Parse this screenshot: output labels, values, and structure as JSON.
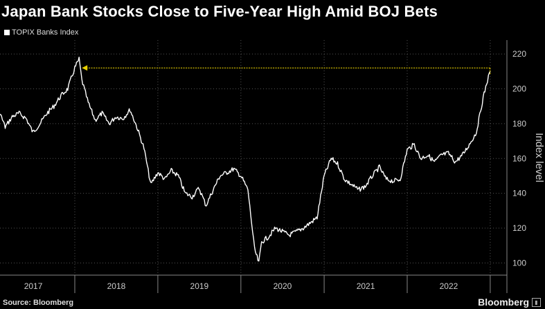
{
  "header": {
    "title": "Japan Bank Stocks Close to Five-Year High Amid BOJ Bets"
  },
  "footer": {
    "source": "Source: Bloomberg",
    "brand": "Bloomberg"
  },
  "colors": {
    "background": "#000000",
    "series_line": "#ffffff",
    "annotation_arrow": "#e8d000",
    "grid": "#555555"
  },
  "chart_data": {
    "type": "line",
    "title": "Japan Bank Stocks Close to Five-Year High Amid BOJ Bets",
    "xlabel": "",
    "ylabel": "Index level",
    "ylim": [
      93,
      228
    ],
    "yticks": [
      100,
      120,
      140,
      160,
      180,
      200,
      220
    ],
    "xlim": [
      "2017-01-01",
      "2023-01-01"
    ],
    "xtick_labels": [
      "2017",
      "2018",
      "2019",
      "2020",
      "2021",
      "2022"
    ],
    "grid": true,
    "legend": "top-left",
    "series": [
      {
        "name": "TOPIX Banks Index",
        "x": [
          "2016-10-01",
          "2016-11-01",
          "2016-12-01",
          "2017-01-01",
          "2017-02-01",
          "2017-03-01",
          "2017-04-01",
          "2017-05-01",
          "2017-06-01",
          "2017-07-01",
          "2017-08-01",
          "2017-09-01",
          "2017-10-01",
          "2017-11-01",
          "2017-12-01",
          "2018-01-01",
          "2018-01-20",
          "2018-02-01",
          "2018-03-01",
          "2018-04-01",
          "2018-05-01",
          "2018-06-01",
          "2018-07-01",
          "2018-08-01",
          "2018-09-01",
          "2018-10-01",
          "2018-11-01",
          "2018-12-01",
          "2019-01-01",
          "2019-02-01",
          "2019-03-01",
          "2019-04-01",
          "2019-05-01",
          "2019-06-01",
          "2019-07-01",
          "2019-08-01",
          "2019-09-01",
          "2019-10-01",
          "2019-11-01",
          "2019-12-01",
          "2020-01-01",
          "2020-02-01",
          "2020-03-01",
          "2020-03-20",
          "2020-04-01",
          "2020-05-01",
          "2020-06-01",
          "2020-07-01",
          "2020-08-01",
          "2020-09-01",
          "2020-10-01",
          "2020-11-01",
          "2020-12-01",
          "2021-01-01",
          "2021-02-01",
          "2021-03-01",
          "2021-04-01",
          "2021-05-01",
          "2021-06-01",
          "2021-07-01",
          "2021-08-01",
          "2021-09-01",
          "2021-10-01",
          "2021-11-01",
          "2021-12-01",
          "2022-01-01",
          "2022-02-01",
          "2022-03-01",
          "2022-04-01",
          "2022-05-01",
          "2022-06-01",
          "2022-07-01",
          "2022-08-01",
          "2022-09-01",
          "2022-10-01",
          "2022-11-01",
          "2022-12-01",
          "2022-12-20",
          "2023-01-01"
        ],
        "y": [
          192,
          186,
          175,
          182,
          188,
          178,
          184,
          186,
          183,
          175,
          180,
          186,
          190,
          196,
          200,
          212,
          217,
          205,
          192,
          182,
          186,
          180,
          184,
          183,
          188,
          178,
          166,
          145,
          152,
          148,
          153,
          150,
          140,
          138,
          143,
          133,
          142,
          150,
          152,
          154,
          150,
          142,
          108,
          100,
          112,
          115,
          120,
          118,
          116,
          118,
          120,
          123,
          126,
          150,
          160,
          157,
          148,
          145,
          142,
          144,
          150,
          155,
          148,
          147,
          148,
          165,
          168,
          160,
          162,
          158,
          162,
          163,
          158,
          162,
          168,
          175,
          195,
          205,
          210
        ]
      }
    ],
    "annotations": [
      {
        "type": "arrow",
        "from_x": "2022-12-31",
        "to_x": "2018-02-01",
        "y": 212
      }
    ]
  }
}
